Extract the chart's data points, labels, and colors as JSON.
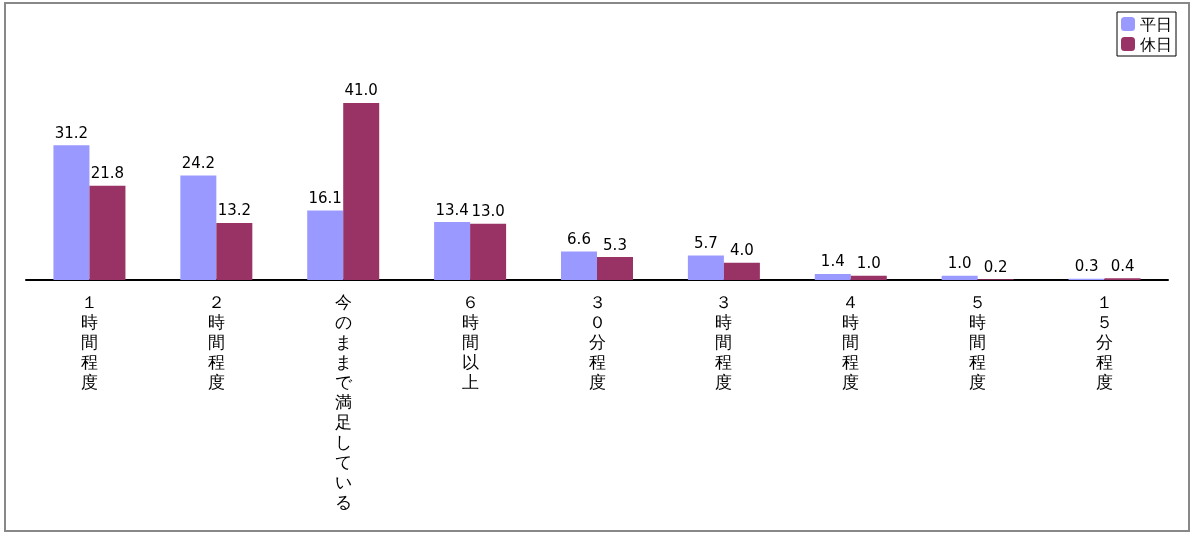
{
  "chart_data": {
    "type": "bar",
    "categories": [
      "１時間程度",
      "２時間程度",
      "今のままで満足している",
      "６時間以上",
      "３０分程度",
      "３時間程度",
      "４時間程度",
      "５時間程度",
      "１５分程度"
    ],
    "series": [
      {
        "name": "平日",
        "color": "#9999ff",
        "values": [
          31.2,
          24.2,
          16.1,
          13.4,
          6.6,
          5.7,
          1.4,
          1.0,
          0.3
        ],
        "value_labels": [
          "31.2",
          "24.2",
          "16.1",
          "13.4",
          "6.6",
          "5.7",
          "1.4",
          "1.0",
          "0.3"
        ]
      },
      {
        "name": "休日",
        "color": "#993366",
        "values": [
          21.8,
          13.2,
          41.0,
          13.0,
          5.3,
          4.0,
          1.0,
          0.2,
          0.4
        ],
        "value_labels": [
          "21.8",
          "13.2",
          "41.0",
          "13.0",
          "5.3",
          "4.0",
          "1.0",
          "0.2",
          "0.4"
        ]
      }
    ],
    "legend": "top right",
    "grid": false
  }
}
